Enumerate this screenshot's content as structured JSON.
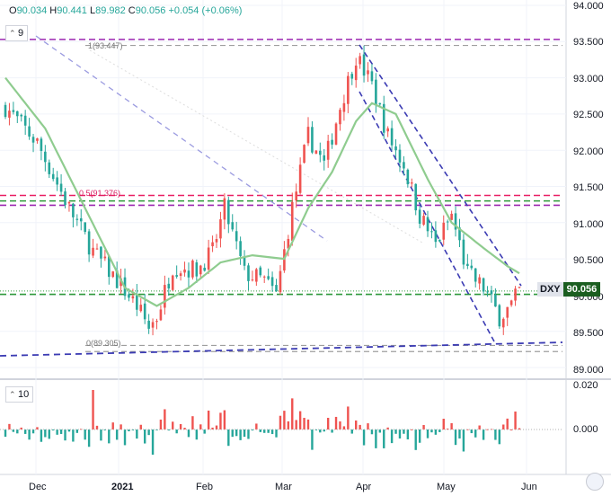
{
  "header": {
    "o_label": "O",
    "o_value": "90.034",
    "h_label": "H",
    "h_value": "90.441",
    "l_label": "L",
    "l_value": "89.982",
    "c_label": "C",
    "c_value": "90.056",
    "change": "+0.054 (+0.06%)"
  },
  "indicators": {
    "ma_period": "9",
    "volume_period": "10"
  },
  "symbol_tag": {
    "symbol": "DXY",
    "price": "90.056"
  },
  "colors": {
    "up": "#ef5350",
    "down": "#26a69a",
    "ma": "#8fcc8f",
    "trend": "#3b3bb3",
    "purple": "#9c27b0",
    "magenta": "#e91e63",
    "green_level": "#2e9a3a",
    "fib_grey": "#9e9e9e"
  },
  "chart_data": {
    "type": "candlestick",
    "symbol": "DXY",
    "price_axis": {
      "ylim": [
        88.9,
        94.0
      ],
      "ticks": [
        "94.000",
        "93.500",
        "93.000",
        "92.500",
        "92.000",
        "91.500",
        "91.000",
        "90.500",
        "90.000",
        "89.500",
        "89.000"
      ]
    },
    "volume_axis": {
      "ylim": [
        -0.012,
        0.02
      ],
      "ticks": [
        "0.020",
        "0.000"
      ]
    },
    "x_ticks": [
      "Dec",
      "2021",
      "Feb",
      "Mar",
      "Apr",
      "May",
      "Jun"
    ],
    "fib_labels": [
      "1(93.447)",
      "0.5(91.376)",
      "0(89.305)"
    ],
    "horizontal_levels": [
      {
        "value": 93.53,
        "style": "purple-dashed"
      },
      {
        "value": 93.447,
        "style": "grey-dashed"
      },
      {
        "value": 91.376,
        "style": "magenta-dashed"
      },
      {
        "value": 91.3,
        "style": "green-dashed"
      },
      {
        "value": 91.24,
        "style": "purple-dashed"
      },
      {
        "value": 90.01,
        "style": "green-dashed"
      },
      {
        "value": 89.305,
        "style": "grey-dashed"
      },
      {
        "value": 89.22,
        "style": "grey-dashed"
      }
    ],
    "candles_count": 130,
    "anchors": [
      {
        "i": 0,
        "v": 92.6
      },
      {
        "i": 8,
        "v": 92.1
      },
      {
        "i": 16,
        "v": 91.2
      },
      {
        "i": 22,
        "v": 90.6
      },
      {
        "i": 28,
        "v": 90.2
      },
      {
        "i": 33,
        "v": 89.85
      },
      {
        "i": 36,
        "v": 89.55
      },
      {
        "i": 38,
        "v": 89.7
      },
      {
        "i": 42,
        "v": 90.4
      },
      {
        "i": 48,
        "v": 90.35
      },
      {
        "i": 52,
        "v": 90.6
      },
      {
        "i": 55,
        "v": 91.2
      },
      {
        "i": 60,
        "v": 90.3
      },
      {
        "i": 65,
        "v": 90.2
      },
      {
        "i": 68,
        "v": 90.0
      },
      {
        "i": 72,
        "v": 91.2
      },
      {
        "i": 76,
        "v": 92.2
      },
      {
        "i": 80,
        "v": 91.8
      },
      {
        "i": 84,
        "v": 92.6
      },
      {
        "i": 88,
        "v": 93.3
      },
      {
        "i": 92,
        "v": 92.9
      },
      {
        "i": 96,
        "v": 92.2
      },
      {
        "i": 100,
        "v": 91.8
      },
      {
        "i": 104,
        "v": 91.1
      },
      {
        "i": 108,
        "v": 90.7
      },
      {
        "i": 112,
        "v": 91.1
      },
      {
        "i": 116,
        "v": 90.3
      },
      {
        "i": 120,
        "v": 90.1
      },
      {
        "i": 124,
        "v": 89.7
      },
      {
        "i": 127,
        "v": 89.85
      },
      {
        "i": 129,
        "v": 90.056
      }
    ],
    "ma_anchors": [
      {
        "i": 0,
        "v": 93.0
      },
      {
        "i": 10,
        "v": 92.3
      },
      {
        "i": 20,
        "v": 91.2
      },
      {
        "i": 30,
        "v": 90.1
      },
      {
        "i": 38,
        "v": 89.85
      },
      {
        "i": 46,
        "v": 90.1
      },
      {
        "i": 54,
        "v": 90.45
      },
      {
        "i": 62,
        "v": 90.55
      },
      {
        "i": 70,
        "v": 90.5
      },
      {
        "i": 76,
        "v": 91.2
      },
      {
        "i": 82,
        "v": 91.7
      },
      {
        "i": 88,
        "v": 92.4
      },
      {
        "i": 92,
        "v": 92.65
      },
      {
        "i": 98,
        "v": 92.5
      },
      {
        "i": 106,
        "v": 91.6
      },
      {
        "i": 112,
        "v": 91.0
      },
      {
        "i": 120,
        "v": 90.65
      },
      {
        "i": 126,
        "v": 90.4
      },
      {
        "i": 129,
        "v": 90.3
      }
    ]
  }
}
